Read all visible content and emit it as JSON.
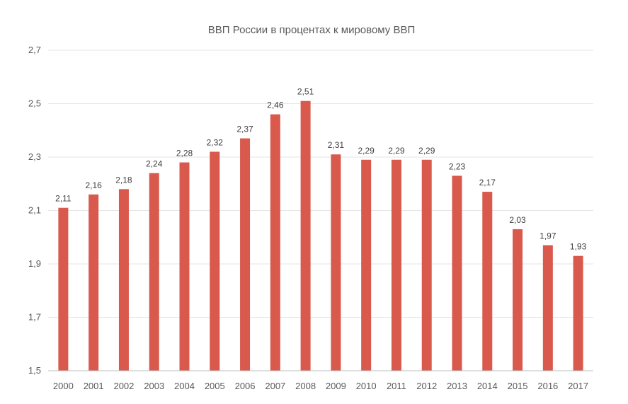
{
  "chart_data": {
    "type": "bar",
    "title": "ВВП России в процентах к мировому ВВП",
    "xlabel": "",
    "ylabel": "",
    "categories": [
      "2000",
      "2001",
      "2002",
      "2003",
      "2004",
      "2005",
      "2006",
      "2007",
      "2008",
      "2009",
      "2010",
      "2011",
      "2012",
      "2013",
      "2014",
      "2015",
      "2016",
      "2017"
    ],
    "values": [
      2.11,
      2.16,
      2.18,
      2.24,
      2.28,
      2.32,
      2.37,
      2.46,
      2.51,
      2.31,
      2.29,
      2.29,
      2.29,
      2.23,
      2.17,
      2.03,
      1.97,
      1.93
    ],
    "data_labels": [
      "2,11",
      "2,16",
      "2,18",
      "2,24",
      "2,28",
      "2,32",
      "2,37",
      "2,46",
      "2,51",
      "2,31",
      "2,29",
      "2,29",
      "2,29",
      "2,23",
      "2,17",
      "2,03",
      "1,97",
      "1,93"
    ],
    "ylim": [
      1.5,
      2.7
    ],
    "yticks": [
      1.5,
      1.7,
      1.9,
      2.1,
      2.3,
      2.5,
      2.7
    ],
    "ytick_labels": [
      "1,5",
      "1,7",
      "1,9",
      "2,1",
      "2,3",
      "2,5",
      "2,7"
    ],
    "grid": true,
    "legend": "none",
    "colors": {
      "bar": "#d9594c",
      "grid": "#e6e6e6",
      "axis": "#bfbfbf",
      "text": "#595959"
    }
  }
}
